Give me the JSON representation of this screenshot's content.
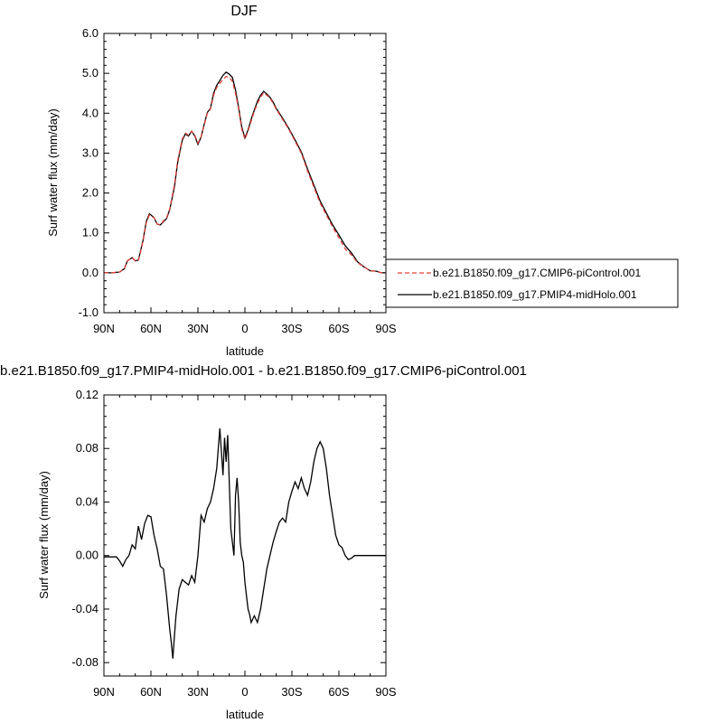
{
  "chart_data": [
    {
      "type": "line",
      "title": "DJF",
      "xlabel": "latitude",
      "ylabel": "Surf water flux (mm/day)",
      "xlim": [
        -90,
        90
      ],
      "ylim": [
        -1.0,
        6.0
      ],
      "x_ticks": [
        -90,
        -60,
        -30,
        0,
        30,
        60,
        90
      ],
      "x_tick_labels": [
        "90N",
        "60N",
        "30N",
        "0",
        "30S",
        "60S",
        "90S"
      ],
      "y_ticks": [
        -1.0,
        0.0,
        1.0,
        2.0,
        3.0,
        4.0,
        5.0,
        6.0
      ],
      "y_tick_labels": [
        "-1.0",
        "0.0",
        "1.0",
        "2.0",
        "3.0",
        "4.0",
        "5.0",
        "6.0"
      ],
      "legend_position": "outside-right",
      "series": [
        {
          "name": "b.e21.B1850.f09_g17.CMIP6-piControl.001",
          "color": "#e0403a",
          "dash": "dashed",
          "x": [
            -90,
            -85,
            -80,
            -77,
            -75,
            -72,
            -70,
            -68,
            -65,
            -63,
            -61,
            -60,
            -58,
            -56,
            -54,
            -52,
            -50,
            -48,
            -45,
            -43,
            -40,
            -38,
            -36,
            -34,
            -32,
            -30,
            -28,
            -26,
            -24,
            -22,
            -20,
            -18,
            -16,
            -14,
            -12,
            -10,
            -8,
            -6,
            -4,
            -2,
            0,
            2,
            4,
            6,
            8,
            10,
            12,
            14,
            16,
            18,
            20,
            24,
            28,
            32,
            36,
            40,
            44,
            48,
            52,
            56,
            60,
            64,
            68,
            72,
            76,
            80,
            84,
            87,
            90
          ],
          "values": [
            0.0,
            0.0,
            0.02,
            0.1,
            0.3,
            0.38,
            0.3,
            0.3,
            0.8,
            1.25,
            1.45,
            1.42,
            1.38,
            1.22,
            1.2,
            1.3,
            1.38,
            1.6,
            2.2,
            2.8,
            3.35,
            3.5,
            3.45,
            3.55,
            3.45,
            3.25,
            3.4,
            3.7,
            4.0,
            4.1,
            4.45,
            4.65,
            4.75,
            4.85,
            4.92,
            4.9,
            4.8,
            4.5,
            4.1,
            3.6,
            3.35,
            3.55,
            3.8,
            4.05,
            4.25,
            4.4,
            4.52,
            4.45,
            4.38,
            4.25,
            4.1,
            3.85,
            3.6,
            3.3,
            3.0,
            2.55,
            2.15,
            1.75,
            1.45,
            1.15,
            0.88,
            0.6,
            0.45,
            0.25,
            0.15,
            0.05,
            0.04,
            0.0,
            0.0
          ]
        },
        {
          "name": "b.e21.B1850.f09_g17.PMIP4-midHolo.001",
          "color": "#000000",
          "dash": "solid",
          "x": [
            -90,
            -85,
            -80,
            -77,
            -75,
            -72,
            -70,
            -68,
            -65,
            -63,
            -61,
            -60,
            -58,
            -56,
            -54,
            -52,
            -50,
            -48,
            -45,
            -43,
            -40,
            -38,
            -36,
            -34,
            -32,
            -30,
            -28,
            -26,
            -24,
            -22,
            -20,
            -18,
            -16,
            -14,
            -12,
            -10,
            -8,
            -6,
            -4,
            -2,
            0,
            2,
            4,
            6,
            8,
            10,
            12,
            14,
            16,
            18,
            20,
            24,
            28,
            32,
            36,
            40,
            44,
            48,
            52,
            56,
            60,
            64,
            68,
            72,
            76,
            80,
            84,
            87,
            90
          ],
          "values": [
            0.0,
            0.0,
            0.02,
            0.1,
            0.3,
            0.38,
            0.3,
            0.32,
            0.82,
            1.28,
            1.48,
            1.45,
            1.38,
            1.22,
            1.2,
            1.28,
            1.36,
            1.58,
            2.15,
            2.75,
            3.32,
            3.48,
            3.43,
            3.55,
            3.43,
            3.22,
            3.4,
            3.72,
            4.02,
            4.12,
            4.5,
            4.7,
            4.82,
            4.95,
            5.03,
            4.98,
            4.9,
            4.58,
            4.14,
            3.65,
            3.38,
            3.58,
            3.85,
            4.08,
            4.3,
            4.45,
            4.55,
            4.48,
            4.4,
            4.28,
            4.12,
            3.88,
            3.62,
            3.33,
            3.03,
            2.6,
            2.2,
            1.8,
            1.5,
            1.2,
            0.95,
            0.68,
            0.5,
            0.27,
            0.15,
            0.05,
            0.04,
            0.0,
            0.0
          ]
        }
      ]
    },
    {
      "type": "line",
      "title": "b.e21.B1850.f09_g17.PMIP4-midHolo.001 - b.e21.B1850.f09_g17.CMIP6-piControl.001",
      "xlabel": "latitude",
      "ylabel": "Surf water flux (mm/day)",
      "xlim": [
        -90,
        90
      ],
      "ylim": [
        -0.09,
        0.12
      ],
      "x_ticks": [
        -90,
        -60,
        -30,
        0,
        30,
        60,
        90
      ],
      "x_tick_labels": [
        "90N",
        "60N",
        "30N",
        "0",
        "30S",
        "60S",
        "90S"
      ],
      "y_ticks": [
        -0.08,
        -0.04,
        0.0,
        0.04,
        0.08,
        0.12
      ],
      "y_tick_labels": [
        "-0.08",
        "-0.04",
        "0.00",
        "0.04",
        "0.08",
        "0.12"
      ],
      "series": [
        {
          "color": "#000000",
          "x": [
            -90,
            -82,
            -80,
            -78,
            -76,
            -74,
            -72,
            -70,
            -68,
            -66,
            -64,
            -62,
            -60,
            -58,
            -56,
            -54,
            -52,
            -50,
            -48,
            -47,
            -46,
            -45,
            -44,
            -42,
            -40,
            -38,
            -36,
            -34,
            -32,
            -30,
            -28,
            -26,
            -24,
            -22,
            -20,
            -18,
            -16,
            -14,
            -13,
            -12,
            -11,
            -10,
            -9,
            -8,
            -7,
            -6,
            -5,
            -4,
            -3,
            -2,
            -1,
            0,
            1,
            2,
            3,
            4,
            6,
            8,
            10,
            12,
            14,
            16,
            18,
            20,
            22,
            24,
            26,
            28,
            30,
            32,
            34,
            36,
            38,
            40,
            42,
            44,
            46,
            48,
            50,
            52,
            54,
            56,
            58,
            60,
            62,
            64,
            66,
            68,
            70,
            72,
            74,
            76,
            78,
            80,
            82,
            84,
            86,
            88,
            90
          ],
          "values": [
            -0.001,
            -0.001,
            -0.004,
            -0.008,
            -0.003,
            0.0,
            0.008,
            0.005,
            0.022,
            0.012,
            0.024,
            0.03,
            0.029,
            0.015,
            0.005,
            -0.008,
            -0.01,
            -0.03,
            -0.055,
            -0.065,
            -0.077,
            -0.06,
            -0.045,
            -0.025,
            -0.018,
            -0.02,
            -0.022,
            -0.015,
            -0.02,
            0.0,
            0.03,
            0.025,
            0.035,
            0.04,
            0.05,
            0.065,
            0.095,
            0.06,
            0.088,
            0.07,
            0.09,
            0.055,
            0.02,
            0.01,
            0.0,
            0.045,
            0.058,
            0.04,
            0.01,
            0.0,
            -0.005,
            -0.02,
            -0.03,
            -0.04,
            -0.044,
            -0.05,
            -0.045,
            -0.05,
            -0.04,
            -0.025,
            -0.01,
            0.0,
            0.01,
            0.018,
            0.025,
            0.028,
            0.025,
            0.04,
            0.048,
            0.055,
            0.05,
            0.058,
            0.05,
            0.045,
            0.055,
            0.07,
            0.08,
            0.085,
            0.08,
            0.065,
            0.045,
            0.03,
            0.015,
            0.008,
            0.006,
            0.0,
            -0.003,
            -0.002,
            0.0,
            0.0,
            0.0,
            0.0,
            0.0,
            0.0,
            0.0,
            0.0,
            0.0,
            0.0,
            0.0
          ]
        }
      ]
    }
  ]
}
